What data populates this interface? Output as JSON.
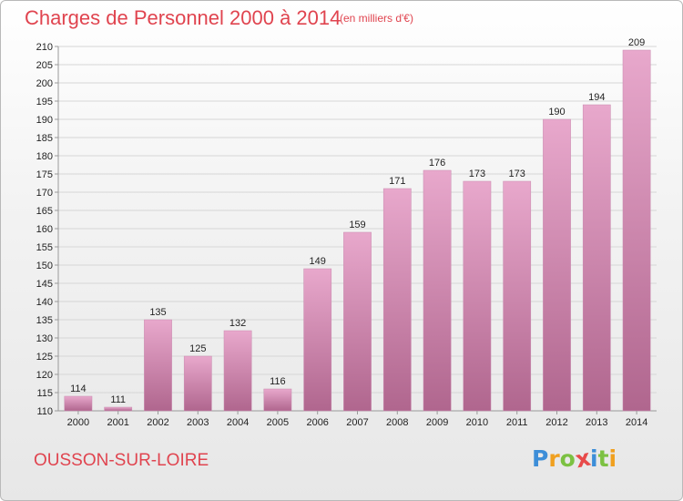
{
  "header": {
    "title": "Charges de Personnel 2000 à 2014",
    "subtitle": "(en milliers d'€)"
  },
  "footer": {
    "commune": "OUSSON-SUR-LOIRE",
    "brand": {
      "letters": [
        "P",
        "r",
        "o",
        "x",
        "i",
        "t",
        "i"
      ],
      "colors": [
        "#3d8ed8",
        "#f0a020",
        "#7cc142",
        "#e84a4a",
        "#3d8ed8",
        "#7cc142",
        "#f0a020"
      ]
    }
  },
  "colors": {
    "title": "#e0444f",
    "bar_top": "#e8a8cc",
    "bar_bottom": "#b0668e",
    "grid": "#d6d6d6",
    "axis": "#9a9a9a"
  },
  "chart_data": {
    "type": "bar",
    "categories": [
      "2000",
      "2001",
      "2002",
      "2003",
      "2004",
      "2005",
      "2006",
      "2007",
      "2008",
      "2009",
      "2010",
      "2011",
      "2012",
      "2013",
      "2014"
    ],
    "values": [
      114,
      111,
      135,
      125,
      132,
      116,
      149,
      159,
      171,
      176,
      173,
      173,
      190,
      194,
      209
    ],
    "ylim": [
      110,
      210
    ],
    "ytick_step": 5,
    "grid": true,
    "data_labels": true
  }
}
